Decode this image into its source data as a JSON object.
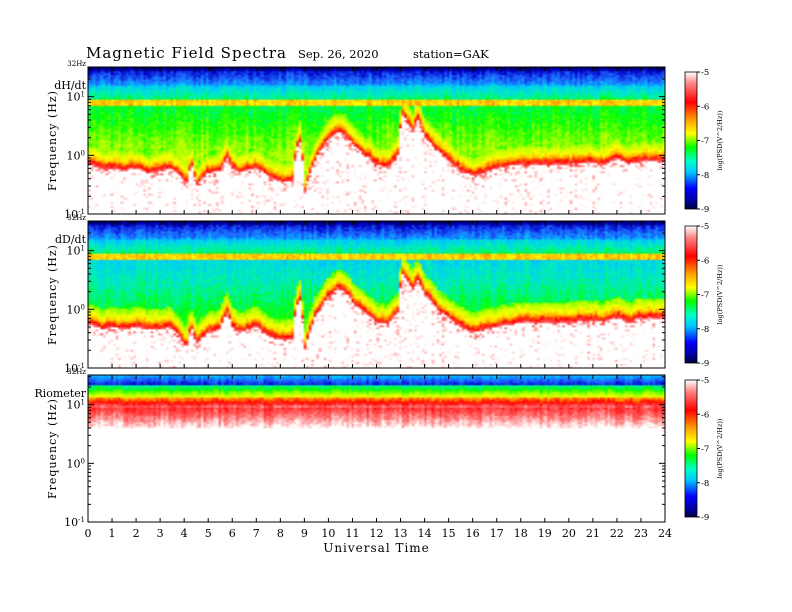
{
  "header": {
    "title": "Magnetic  Field  Spectra",
    "date": "Sep. 26, 2020",
    "station": "station=GAK"
  },
  "chart_data": [
    {
      "type": "heatmap",
      "panel_label": "dH/dt",
      "top_label": "32Hz",
      "ylabel": "Frequency  (Hz)",
      "y_scale": "log",
      "ylim_hz": [
        0.1,
        32
      ],
      "y_ticks": [
        {
          "base": "10",
          "exp": "1"
        },
        {
          "base": "10",
          "exp": "0"
        },
        {
          "base": "10",
          "exp": "-1"
        }
      ],
      "xlim": [
        0,
        24
      ],
      "colorbar": {
        "label": "log(PSD(V^2/Hz))",
        "ticks": [
          "-5",
          "-6",
          "-7",
          "-8",
          "-9"
        ],
        "range": [
          -9,
          -5
        ]
      },
      "cutoff_profile": {
        "time_h": [
          0,
          0.4,
          0.6,
          1.0,
          1.5,
          2.0,
          2.5,
          3.0,
          3.4,
          3.8,
          4.1,
          4.3,
          4.5,
          5.0,
          5.5,
          5.8,
          6.0,
          6.3,
          6.6,
          7.0,
          7.5,
          8.0,
          8.5,
          8.8,
          9.0,
          9.3,
          9.5,
          10.0,
          10.4,
          10.7,
          11.0,
          11.5,
          12.0,
          12.5,
          12.9,
          13.1,
          13.3,
          13.5,
          13.7,
          14.0,
          14.5,
          15.0,
          15.5,
          16.0,
          16.5,
          17.0,
          18.0,
          19.0,
          20.0,
          21.0,
          21.5,
          22.0,
          22.5,
          23.0,
          24.0
        ],
        "freq_hz": [
          0.7,
          0.65,
          0.55,
          0.6,
          0.55,
          0.6,
          0.5,
          0.55,
          0.6,
          0.45,
          0.3,
          0.7,
          0.3,
          0.5,
          0.55,
          0.9,
          0.6,
          0.5,
          0.55,
          0.6,
          0.45,
          0.35,
          0.35,
          1.8,
          0.2,
          0.6,
          0.9,
          1.8,
          2.5,
          2.2,
          1.5,
          1.0,
          0.7,
          0.6,
          1.0,
          5.0,
          3.5,
          2.5,
          4.0,
          2.0,
          1.2,
          0.8,
          0.55,
          0.45,
          0.5,
          0.6,
          0.7,
          0.7,
          0.7,
          0.75,
          0.65,
          0.9,
          0.7,
          0.8,
          0.8
        ]
      }
    },
    {
      "type": "heatmap",
      "panel_label": "dD/dt",
      "top_label": "32Hz",
      "ylabel": "Frequency  (Hz)",
      "y_scale": "log",
      "ylim_hz": [
        0.1,
        32
      ],
      "y_ticks": [
        {
          "base": "10",
          "exp": "1"
        },
        {
          "base": "10",
          "exp": "0"
        },
        {
          "base": "10",
          "exp": "-1"
        }
      ],
      "xlim": [
        0,
        24
      ],
      "colorbar": {
        "label": "log(PSD(V^2/Hz))",
        "ticks": [
          "-5",
          "-6",
          "-7",
          "-8",
          "-9"
        ],
        "range": [
          -9,
          -5
        ]
      },
      "cutoff_profile": {
        "time_h": [
          0,
          0.4,
          0.6,
          1.0,
          1.5,
          2.0,
          2.5,
          3.0,
          3.4,
          3.8,
          4.1,
          4.3,
          4.5,
          5.0,
          5.5,
          5.8,
          6.0,
          6.3,
          6.6,
          7.0,
          7.5,
          8.0,
          8.5,
          8.8,
          9.0,
          9.3,
          9.5,
          10.0,
          10.4,
          10.7,
          11.0,
          11.5,
          12.0,
          12.5,
          12.9,
          13.1,
          13.3,
          13.5,
          13.7,
          14.0,
          14.5,
          15.0,
          15.5,
          16.0,
          16.5,
          17.0,
          18.0,
          19.0,
          20.0,
          21.0,
          21.5,
          22.0,
          22.5,
          23.0,
          24.0
        ],
        "freq_hz": [
          0.55,
          0.5,
          0.45,
          0.5,
          0.45,
          0.5,
          0.45,
          0.45,
          0.5,
          0.35,
          0.2,
          0.5,
          0.25,
          0.4,
          0.45,
          0.9,
          0.5,
          0.4,
          0.45,
          0.5,
          0.35,
          0.3,
          0.3,
          1.5,
          0.18,
          0.5,
          0.8,
          1.6,
          2.2,
          2.0,
          1.3,
          0.9,
          0.6,
          0.55,
          0.9,
          4.0,
          3.0,
          2.2,
          3.2,
          1.8,
          1.0,
          0.7,
          0.5,
          0.4,
          0.45,
          0.5,
          0.6,
          0.6,
          0.6,
          0.65,
          0.6,
          0.75,
          0.6,
          0.7,
          0.7
        ]
      }
    },
    {
      "type": "heatmap",
      "panel_label": "Riometer",
      "top_label": "32Hz",
      "ylabel": "Frequency  (Hz)",
      "y_scale": "log",
      "ylim_hz": [
        0.1,
        32
      ],
      "y_ticks": [
        {
          "base": "10",
          "exp": "1"
        },
        {
          "base": "10",
          "exp": "0"
        },
        {
          "base": "10",
          "exp": "-1"
        }
      ],
      "xlim": [
        0,
        24
      ],
      "xlabel": "Universal Time",
      "x_ticks": [
        "0",
        "1",
        "2",
        "3",
        "4",
        "5",
        "6",
        "7",
        "8",
        "9",
        "10",
        "11",
        "12",
        "13",
        "14",
        "15",
        "16",
        "17",
        "18",
        "19",
        "20",
        "21",
        "22",
        "23",
        "24"
      ],
      "colorbar": {
        "label": "log(PSD(V^2/Hz))",
        "ticks": [
          "-5",
          "-6",
          "-7",
          "-8",
          "-9"
        ],
        "range": [
          -9,
          -5
        ]
      },
      "cutoff_profile": {
        "time_h": [
          0,
          24
        ],
        "freq_hz": [
          6,
          6
        ]
      }
    }
  ],
  "colors": {
    "scale": [
      "#000050",
      "#0000c8",
      "#1e64ff",
      "#00c8ff",
      "#00f0b4",
      "#00ff00",
      "#b4ff00",
      "#ffff00",
      "#ffa000",
      "#ff0000",
      "#ff6464",
      "#ffffff"
    ]
  }
}
